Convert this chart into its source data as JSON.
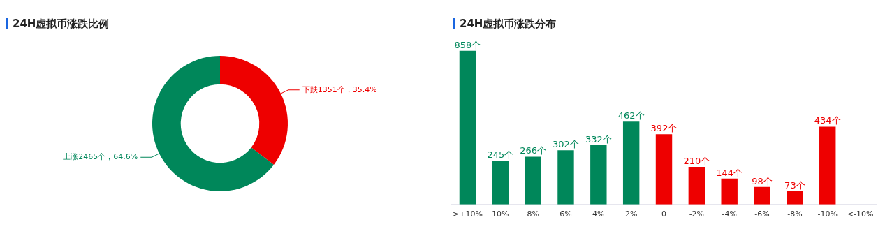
{
  "chart_data": [
    {
      "type": "donut",
      "title": "24H虚拟币涨跌比例",
      "categories": [
        "下跌",
        "上涨"
      ],
      "values": [
        1351,
        2465
      ],
      "colors": [
        "#ee0000",
        "#00875a"
      ],
      "value_labels": [
        "1351个，35.4%",
        "2465个，64.6%"
      ],
      "legend": false
    },
    {
      "type": "bar",
      "title": "24H虚拟币涨跌分布",
      "categories": [
        ">+10%",
        "10%",
        "8%",
        "6%",
        "4%",
        "2%",
        "0",
        "-2%",
        "-4%",
        "-6%",
        "-8%",
        "-10%",
        "<-10%"
      ],
      "values": [
        858,
        245,
        266,
        302,
        332,
        462,
        392,
        210,
        144,
        98,
        73,
        434,
        null
      ],
      "colors": [
        "#00875a",
        "#00875a",
        "#00875a",
        "#00875a",
        "#00875a",
        "#00875a",
        "#ee0000",
        "#ee0000",
        "#ee0000",
        "#ee0000",
        "#ee0000",
        "#ee0000",
        null
      ],
      "value_labels": [
        "858个",
        "245个",
        "266个",
        "302个",
        "332个",
        "462个",
        "392个",
        "210个",
        "144个",
        "98个",
        "73个",
        "434个",
        null
      ],
      "grid": false,
      "legend": false
    }
  ]
}
